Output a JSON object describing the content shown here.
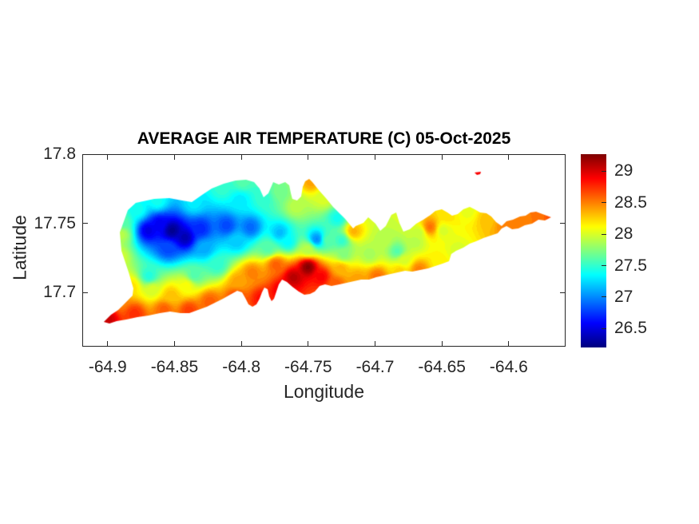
{
  "figure": {
    "background": "#ffffff"
  },
  "title": {
    "text": "AVERAGE AIR TEMPERATURE (C) 05-Oct-2025"
  },
  "axes": {
    "xlabel": "Longitude",
    "ylabel": "Latitude",
    "xticks": [
      -64.9,
      -64.85,
      -64.8,
      -64.75,
      -64.7,
      -64.65,
      -64.6
    ],
    "xtick_labels": [
      "-64.9",
      "-64.85",
      "-64.8",
      "-64.75",
      "-64.7",
      "-64.65",
      "-64.6"
    ],
    "yticks": [
      17.8,
      17.75,
      17.7
    ],
    "ytick_labels": [
      "17.8",
      "17.75",
      "17.7"
    ],
    "axis_color": "#262626",
    "text_color": "#262626",
    "title_color": "#000000"
  },
  "colorbar": {
    "vmin": 26.2,
    "vmax": 29.27,
    "ticks": [
      29,
      28.5,
      28,
      27.5,
      27,
      26.5
    ],
    "tick_labels": [
      "29",
      "28.5",
      "28",
      "27.5",
      "27",
      "26.5"
    ],
    "colormap": "jet"
  },
  "chart_data": {
    "type": "heatmap",
    "subtype": "filled-contour-map-of-island",
    "title": "AVERAGE AIR TEMPERATURE (C) 05-Oct-2025",
    "xlabel": "Longitude",
    "ylabel": "Latitude",
    "xlim": [
      -64.919,
      -64.5575
    ],
    "ylim": [
      17.661,
      17.8
    ],
    "caxis": [
      26.2,
      29.27
    ],
    "colormap": "jet",
    "levels_step": 0.05,
    "island_outline": [
      [
        -64.9029,
        17.6789
      ],
      [
        -64.8975,
        17.6841
      ],
      [
        -64.8921,
        17.6875
      ],
      [
        -64.8861,
        17.6933
      ],
      [
        -64.8814,
        17.6979
      ],
      [
        -64.8808,
        17.7031
      ],
      [
        -64.8843,
        17.7146
      ],
      [
        -64.8897,
        17.7302
      ],
      [
        -64.8909,
        17.7435
      ],
      [
        -64.8849,
        17.7596
      ],
      [
        -64.879,
        17.7648
      ],
      [
        -64.8652,
        17.7677
      ],
      [
        -64.8539,
        17.7683
      ],
      [
        -64.8443,
        17.7665
      ],
      [
        -64.8371,
        17.7654
      ],
      [
        -64.8294,
        17.7706
      ],
      [
        -64.8222,
        17.7752
      ],
      [
        -64.8132,
        17.7787
      ],
      [
        -64.8043,
        17.781
      ],
      [
        -64.7965,
        17.7815
      ],
      [
        -64.7905,
        17.7798
      ],
      [
        -64.7864,
        17.7752
      ],
      [
        -64.7834,
        17.7689
      ],
      [
        -64.7798,
        17.7717
      ],
      [
        -64.7762,
        17.7798
      ],
      [
        -64.772,
        17.7781
      ],
      [
        -64.7672,
        17.7798
      ],
      [
        -64.7642,
        17.7775
      ],
      [
        -64.763,
        17.7717
      ],
      [
        -64.7619,
        17.7677
      ],
      [
        -64.7583,
        17.7665
      ],
      [
        -64.7553,
        17.7694
      ],
      [
        -64.7541,
        17.7764
      ],
      [
        -64.7523,
        17.7804
      ],
      [
        -64.7493,
        17.7821
      ],
      [
        -64.7469,
        17.7798
      ],
      [
        -64.7421,
        17.774
      ],
      [
        -64.7368,
        17.7683
      ],
      [
        -64.7314,
        17.7619
      ],
      [
        -64.7266,
        17.7573
      ],
      [
        -64.7224,
        17.7533
      ],
      [
        -64.7194,
        17.7498
      ],
      [
        -64.7164,
        17.7464
      ],
      [
        -64.7145,
        17.7481
      ],
      [
        -64.7087,
        17.7504
      ],
      [
        -64.7051,
        17.7544
      ],
      [
        -64.6997,
        17.7498
      ],
      [
        -64.6961,
        17.7446
      ],
      [
        -64.692,
        17.7481
      ],
      [
        -64.6878,
        17.7562
      ],
      [
        -64.6842,
        17.7579
      ],
      [
        -64.6818,
        17.7504
      ],
      [
        -64.6788,
        17.7441
      ],
      [
        -64.674,
        17.7458
      ],
      [
        -64.6692,
        17.7498
      ],
      [
        -64.6639,
        17.7527
      ],
      [
        -64.6585,
        17.7562
      ],
      [
        -64.6549,
        17.7591
      ],
      [
        -64.6501,
        17.7602
      ],
      [
        -64.6459,
        17.7579
      ],
      [
        -64.6424,
        17.7556
      ],
      [
        -64.6382,
        17.7567
      ],
      [
        -64.634,
        17.7602
      ],
      [
        -64.6292,
        17.7619
      ],
      [
        -64.6256,
        17.7602
      ],
      [
        -64.6214,
        17.7579
      ],
      [
        -64.6167,
        17.7573
      ],
      [
        -64.6131,
        17.755
      ],
      [
        -64.6095,
        17.751
      ],
      [
        -64.6053,
        17.7481
      ],
      [
        -64.6017,
        17.7515
      ],
      [
        -64.5969,
        17.7527
      ],
      [
        -64.5916,
        17.755
      ],
      [
        -64.5874,
        17.7556
      ],
      [
        -64.5838,
        17.7579
      ],
      [
        -64.5796,
        17.7585
      ],
      [
        -64.5748,
        17.7567
      ],
      [
        -64.5683,
        17.7544
      ],
      [
        -64.573,
        17.7521
      ],
      [
        -64.5778,
        17.7527
      ],
      [
        -64.5826,
        17.7498
      ],
      [
        -64.588,
        17.7487
      ],
      [
        -64.5928,
        17.7464
      ],
      [
        -64.5975,
        17.7458
      ],
      [
        -64.6017,
        17.7481
      ],
      [
        -64.6053,
        17.7464
      ],
      [
        -64.6083,
        17.7429
      ],
      [
        -64.6137,
        17.7412
      ],
      [
        -64.619,
        17.7394
      ],
      [
        -64.6244,
        17.7371
      ],
      [
        -64.6292,
        17.7354
      ],
      [
        -64.634,
        17.7325
      ],
      [
        -64.6394,
        17.7302
      ],
      [
        -64.643,
        17.7279
      ],
      [
        -64.6447,
        17.7227
      ],
      [
        -64.6495,
        17.721
      ],
      [
        -64.6549,
        17.7193
      ],
      [
        -64.6603,
        17.7175
      ],
      [
        -64.6663,
        17.7164
      ],
      [
        -64.6722,
        17.7152
      ],
      [
        -64.6776,
        17.7158
      ],
      [
        -64.683,
        17.7146
      ],
      [
        -64.6884,
        17.7135
      ],
      [
        -64.6937,
        17.7123
      ],
      [
        -64.6991,
        17.7112
      ],
      [
        -64.7045,
        17.7094
      ],
      [
        -64.7105,
        17.7094
      ],
      [
        -64.7158,
        17.7083
      ],
      [
        -64.7212,
        17.7071
      ],
      [
        -64.7266,
        17.706
      ],
      [
        -64.7326,
        17.7048
      ],
      [
        -64.7374,
        17.706
      ],
      [
        -64.7415,
        17.7048
      ],
      [
        -64.7451,
        17.7008
      ],
      [
        -64.7487,
        17.6991
      ],
      [
        -64.7529,
        17.6985
      ],
      [
        -64.7571,
        17.7008
      ],
      [
        -64.7619,
        17.7043
      ],
      [
        -64.766,
        17.7077
      ],
      [
        -64.7696,
        17.7094
      ],
      [
        -64.772,
        17.706
      ],
      [
        -64.7738,
        17.7008
      ],
      [
        -64.7756,
        17.6956
      ],
      [
        -64.7774,
        17.6939
      ],
      [
        -64.7792,
        17.6973
      ],
      [
        -64.7804,
        17.7025
      ],
      [
        -64.7828,
        17.7037
      ],
      [
        -64.7846,
        17.7002
      ],
      [
        -64.7864,
        17.6956
      ],
      [
        -64.7887,
        17.6916
      ],
      [
        -64.7917,
        17.6898
      ],
      [
        -64.7947,
        17.6916
      ],
      [
        -64.7971,
        17.6962
      ],
      [
        -64.7995,
        17.7002
      ],
      [
        -64.8031,
        17.7014
      ],
      [
        -64.8085,
        17.6985
      ],
      [
        -64.8138,
        17.6956
      ],
      [
        -64.8198,
        17.6927
      ],
      [
        -64.8258,
        17.6898
      ],
      [
        -64.8324,
        17.6875
      ],
      [
        -64.8389,
        17.6852
      ],
      [
        -64.8455,
        17.6852
      ],
      [
        -64.8533,
        17.6864
      ],
      [
        -64.861,
        17.6852
      ],
      [
        -64.8694,
        17.6835
      ],
      [
        -64.8778,
        17.6823
      ],
      [
        -64.8861,
        17.6806
      ],
      [
        -64.8933,
        17.6795
      ],
      [
        -64.8987,
        17.6777
      ]
    ],
    "buck_island_outline": [
      [
        -64.6256,
        17.7867
      ],
      [
        -64.6208,
        17.7873
      ],
      [
        -64.6214,
        17.7856
      ],
      [
        -64.6238,
        17.785
      ]
    ],
    "buck_island_value": 28.9,
    "samples": [
      [
        -64.8521,
        17.7452,
        26.25
      ],
      [
        -64.8425,
        17.74,
        26.35
      ],
      [
        -64.8616,
        17.7498,
        26.55
      ],
      [
        -64.8306,
        17.7464,
        26.7
      ],
      [
        -64.8114,
        17.7487,
        26.8
      ],
      [
        -64.7935,
        17.7475,
        26.9
      ],
      [
        -64.7714,
        17.7435,
        27.15
      ],
      [
        -64.7439,
        17.7389,
        27.0
      ],
      [
        -64.8778,
        17.7602,
        27.4
      ],
      [
        -64.8634,
        17.7665,
        27.4
      ],
      [
        -64.8359,
        17.7648,
        27.3
      ],
      [
        -64.8144,
        17.7758,
        27.5
      ],
      [
        -64.7995,
        17.7804,
        27.6
      ],
      [
        -64.7834,
        17.7683,
        27.5
      ],
      [
        -64.7481,
        17.7804,
        28.4
      ],
      [
        -64.8903,
        17.7423,
        27.9
      ],
      [
        -64.8927,
        17.7262,
        28.0
      ],
      [
        -64.8694,
        17.7123,
        27.45
      ],
      [
        -64.8826,
        17.7048,
        28.2
      ],
      [
        -64.8909,
        17.6944,
        28.5
      ],
      [
        -64.9005,
        17.6812,
        29.05
      ],
      [
        -64.8802,
        17.6852,
        28.75
      ],
      [
        -64.8581,
        17.6881,
        28.6
      ],
      [
        -64.8395,
        17.6875,
        28.7
      ],
      [
        -64.8527,
        17.6985,
        28.3
      ],
      [
        -64.867,
        17.7025,
        28.0
      ],
      [
        -64.8413,
        17.7054,
        28.1
      ],
      [
        -64.824,
        17.6939,
        28.6
      ],
      [
        -64.8354,
        17.7129,
        27.6
      ],
      [
        -64.818,
        17.7204,
        27.5
      ],
      [
        -64.8037,
        17.7371,
        27.2
      ],
      [
        -64.8025,
        17.7083,
        28.4
      ],
      [
        -64.7923,
        17.7146,
        28.5
      ],
      [
        -64.7852,
        17.6962,
        28.85
      ],
      [
        -64.7505,
        17.7187,
        29.25
      ],
      [
        -64.7613,
        17.7112,
        29.1
      ],
      [
        -64.7702,
        17.7025,
        28.95
      ],
      [
        -64.7403,
        17.7117,
        28.9
      ],
      [
        -64.7744,
        17.7204,
        28.6
      ],
      [
        -64.7296,
        17.7066,
        28.6
      ],
      [
        -64.7135,
        17.71,
        28.4
      ],
      [
        -64.6985,
        17.7117,
        28.55
      ],
      [
        -64.6818,
        17.7158,
        28.25
      ],
      [
        -64.6675,
        17.7169,
        28.5
      ],
      [
        -64.6519,
        17.7221,
        28.15
      ],
      [
        -64.6388,
        17.7308,
        28.0
      ],
      [
        -64.7236,
        17.7279,
        27.75
      ],
      [
        -64.7045,
        17.7279,
        27.85
      ],
      [
        -64.6836,
        17.7302,
        27.6
      ],
      [
        -64.6698,
        17.7371,
        27.9
      ],
      [
        -64.7164,
        17.7446,
        28.35
      ],
      [
        -64.6591,
        17.7475,
        28.55
      ],
      [
        -64.6675,
        17.7435,
        27.95
      ],
      [
        -64.6495,
        17.7452,
        28.0
      ],
      [
        -64.6459,
        17.7556,
        28.2
      ],
      [
        -64.631,
        17.7596,
        28.05
      ],
      [
        -64.6161,
        17.7533,
        28.3
      ],
      [
        -64.6023,
        17.7498,
        28.5
      ],
      [
        -64.5892,
        17.7527,
        28.5
      ],
      [
        -64.5766,
        17.755,
        28.55
      ],
      [
        -64.5695,
        17.7544,
        28.65
      ],
      [
        -64.7356,
        17.7383,
        27.6
      ],
      [
        -64.726,
        17.7175,
        28.35
      ],
      [
        -64.7505,
        17.7319,
        27.9
      ],
      [
        -64.7654,
        17.7371,
        27.35
      ],
      [
        -64.6937,
        17.7383,
        27.9
      ],
      [
        -64.8013,
        17.7671,
        27.3
      ],
      [
        -64.87,
        17.7452,
        26.5
      ],
      [
        -64.8551,
        17.7325,
        26.8
      ],
      [
        -64.8282,
        17.7325,
        27.1
      ],
      [
        -64.7804,
        17.7325,
        27.6
      ],
      [
        -64.7254,
        17.7377,
        27.5
      ],
      [
        -64.6788,
        17.7239,
        28.0
      ],
      [
        -64.7595,
        17.7625,
        27.9
      ],
      [
        -64.7714,
        17.7729,
        27.7
      ],
      [
        -64.8043,
        17.6968,
        28.7
      ],
      [
        -64.8891,
        17.7515,
        27.6
      ],
      [
        -64.7386,
        17.7683,
        28.0
      ],
      [
        -64.7284,
        17.7539,
        27.4
      ]
    ]
  }
}
